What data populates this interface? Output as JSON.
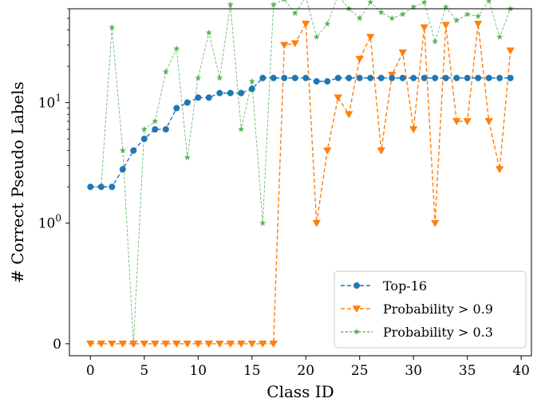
{
  "chart_data": {
    "type": "line",
    "title": "",
    "xlabel": "Class ID",
    "ylabel": "# Correct Pseudo Labels",
    "yscale": "symlog",
    "xlim": [
      -1.95,
      40.95
    ],
    "ylim": [
      -0.1,
      60
    ],
    "x_ticks": [
      0,
      5,
      10,
      15,
      20,
      25,
      30,
      35,
      40
    ],
    "x_tick_labels": [
      "0",
      "5",
      "10",
      "15",
      "20",
      "25",
      "30",
      "35",
      "40"
    ],
    "y_ticks": [
      0,
      1,
      10
    ],
    "y_tick_labels": [
      {
        "base": "0",
        "exp": ""
      },
      {
        "base": "10",
        "exp": "0"
      },
      {
        "base": "10",
        "exp": "1"
      }
    ],
    "x": [
      0,
      1,
      2,
      3,
      4,
      5,
      6,
      7,
      8,
      9,
      10,
      11,
      12,
      13,
      14,
      15,
      16,
      17,
      18,
      19,
      20,
      21,
      22,
      23,
      24,
      25,
      26,
      27,
      28,
      29,
      30,
      31,
      32,
      33,
      34,
      35,
      36,
      37,
      38,
      39
    ],
    "series": [
      {
        "name": "Top-16",
        "color": "#1f77b4",
        "marker": "circle",
        "values": [
          2,
          2,
          2,
          2.8,
          4,
          5,
          6,
          6,
          9,
          10,
          11,
          11,
          12,
          12,
          12,
          13,
          16,
          16,
          16,
          16,
          16,
          15,
          15,
          16,
          16,
          16,
          16,
          16,
          16,
          16,
          16,
          16,
          16,
          16,
          16,
          16,
          16,
          16,
          16,
          16
        ]
      },
      {
        "name": "Probability > 0.9",
        "color": "#ff7f0e",
        "marker": "triangle-down",
        "values": [
          0,
          0,
          0,
          0,
          0,
          0,
          0,
          0,
          0,
          0,
          0,
          0,
          0,
          0,
          0,
          0,
          0,
          0,
          30,
          31,
          45,
          1,
          4,
          11,
          8,
          23,
          35,
          4,
          17,
          26,
          6,
          42,
          1,
          44,
          7,
          7,
          45,
          7,
          2.8,
          27
        ]
      },
      {
        "name": "Probability > 0.3",
        "color": "#2ca02c",
        "marker": "star",
        "values": [
          2,
          2,
          42,
          4,
          0,
          6,
          7,
          18,
          28,
          3.5,
          16,
          38,
          16,
          65,
          6,
          15,
          1,
          65,
          72,
          55,
          75,
          35,
          45,
          78,
          60,
          50,
          68,
          56,
          50,
          54,
          62,
          68,
          32,
          62,
          48,
          54,
          52,
          70,
          35,
          60
        ]
      }
    ],
    "legend_position": "lower-right"
  }
}
